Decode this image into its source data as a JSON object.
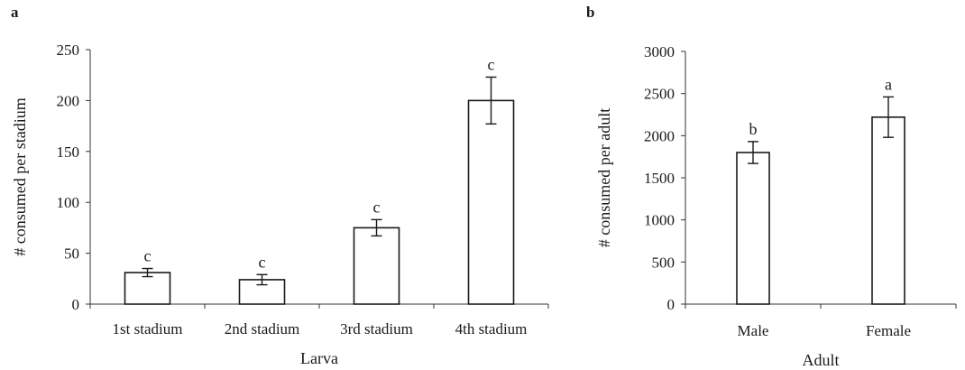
{
  "chart_data": [
    {
      "panel_label": "a",
      "type": "bar",
      "categories": [
        "1st stadium",
        "2nd stadium",
        "3rd stadium",
        "4th stadium"
      ],
      "values": [
        31,
        24,
        75,
        200
      ],
      "error": [
        4,
        5,
        8,
        23
      ],
      "letters": [
        "c",
        "c",
        "c",
        "c"
      ],
      "xlabel": "Larva",
      "ylabel": "# consumed per stadium",
      "ylim": [
        0,
        250
      ],
      "yticks": [
        "0",
        "50",
        "100",
        "150",
        "200",
        "250"
      ],
      "grid": false,
      "legend": "none"
    },
    {
      "panel_label": "b",
      "type": "bar",
      "categories": [
        "Male",
        "Female"
      ],
      "values": [
        1800,
        2220
      ],
      "error": [
        130,
        240
      ],
      "letters": [
        "b",
        "a"
      ],
      "xlabel": "Adult",
      "ylabel": "# consumed per adult",
      "ylim": [
        0,
        3000
      ],
      "yticks": [
        "0",
        "500",
        "1000",
        "1500",
        "2000",
        "2500",
        "3000"
      ],
      "grid": false,
      "legend": "none"
    }
  ]
}
